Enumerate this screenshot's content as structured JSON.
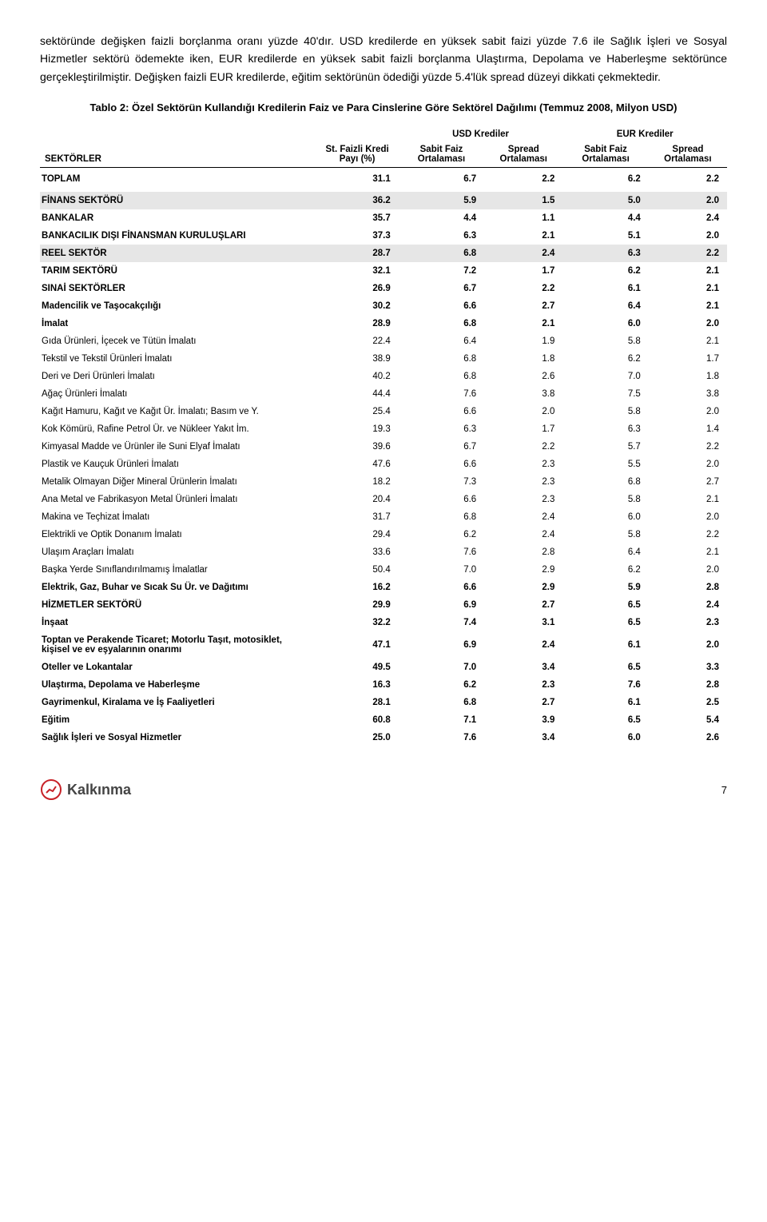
{
  "intro_text": "sektöründe değişken faizli borçlanma oranı yüzde 40'dır. USD kredilerde en yüksek sabit faizi yüzde 7.6 ile Sağlık İşleri ve Sosyal Hizmetler sektörü ödemekte iken, EUR kredilerde en yüksek sabit faizli borçlanma Ulaştırma, Depolama ve Haberleşme sektörünce gerçekleştirilmiştir. Değişken faizli EUR kredilerde, eğitim sektörünün ödediği yüzde 5.4'lük spread düzeyi dikkati çekmektedir.",
  "table_title": "Tablo 2: Özel Sektörün Kullandığı Kredilerin Faiz ve Para Cinslerine Göre Sektörel Dağılımı (Temmuz 2008, Milyon USD)",
  "headers": {
    "sektorler": "SEKTÖRLER",
    "st_faizli": "St. Faizli Kredi Payı (%)",
    "usd_group": "USD Krediler",
    "eur_group": "EUR Krediler",
    "sabit_faiz": "Sabit Faiz Ortalaması",
    "spread": "Spread Ortalaması"
  },
  "rows": [
    {
      "label": "TOPLAM",
      "v": [
        "31.1",
        "6.7",
        "2.2",
        "6.2",
        "2.2"
      ],
      "cls": "toplam"
    },
    {
      "label": "FİNANS SEKTÖRÜ",
      "v": [
        "36.2",
        "5.9",
        "1.5",
        "5.0",
        "2.0"
      ],
      "cls": "section"
    },
    {
      "label": "BANKALAR",
      "v": [
        "35.7",
        "4.4",
        "1.1",
        "4.4",
        "2.4"
      ],
      "cls": "bold"
    },
    {
      "label": "BANKACILIK DIŞI FİNANSMAN KURULUŞLARI",
      "v": [
        "37.3",
        "6.3",
        "2.1",
        "5.1",
        "2.0"
      ],
      "cls": "bold"
    },
    {
      "label": "REEL SEKTÖR",
      "v": [
        "28.7",
        "6.8",
        "2.4",
        "6.3",
        "2.2"
      ],
      "cls": "section"
    },
    {
      "label": "TARIM SEKTÖRÜ",
      "v": [
        "32.1",
        "7.2",
        "1.7",
        "6.2",
        "2.1"
      ],
      "cls": "bold"
    },
    {
      "label": "SINAİ SEKTÖRLER",
      "v": [
        "26.9",
        "6.7",
        "2.2",
        "6.1",
        "2.1"
      ],
      "cls": "bold"
    },
    {
      "label": "Madencilik ve Taşocakçılığı",
      "v": [
        "30.2",
        "6.6",
        "2.7",
        "6.4",
        "2.1"
      ],
      "cls": "bold"
    },
    {
      "label": "İmalat",
      "v": [
        "28.9",
        "6.8",
        "2.1",
        "6.0",
        "2.0"
      ],
      "cls": "bold"
    },
    {
      "label": "Gıda Ürünleri, İçecek ve Tütün İmalatı",
      "v": [
        "22.4",
        "6.4",
        "1.9",
        "5.8",
        "2.1"
      ],
      "cls": ""
    },
    {
      "label": "Tekstil ve Tekstil Ürünleri İmalatı",
      "v": [
        "38.9",
        "6.8",
        "1.8",
        "6.2",
        "1.7"
      ],
      "cls": ""
    },
    {
      "label": "Deri ve Deri Ürünleri İmalatı",
      "v": [
        "40.2",
        "6.8",
        "2.6",
        "7.0",
        "1.8"
      ],
      "cls": ""
    },
    {
      "label": "Ağaç Ürünleri İmalatı",
      "v": [
        "44.4",
        "7.6",
        "3.8",
        "7.5",
        "3.8"
      ],
      "cls": ""
    },
    {
      "label": "Kağıt Hamuru, Kağıt ve Kağıt Ür. İmalatı; Basım ve Y.",
      "v": [
        "25.4",
        "6.6",
        "2.0",
        "5.8",
        "2.0"
      ],
      "cls": ""
    },
    {
      "label": "Kok Kömürü, Rafine Petrol Ür. ve Nükleer Yakıt İm.",
      "v": [
        "19.3",
        "6.3",
        "1.7",
        "6.3",
        "1.4"
      ],
      "cls": ""
    },
    {
      "label": "Kimyasal Madde ve Ürünler ile Suni Elyaf İmalatı",
      "v": [
        "39.6",
        "6.7",
        "2.2",
        "5.7",
        "2.2"
      ],
      "cls": ""
    },
    {
      "label": "Plastik ve Kauçuk Ürünleri İmalatı",
      "v": [
        "47.6",
        "6.6",
        "2.3",
        "5.5",
        "2.0"
      ],
      "cls": ""
    },
    {
      "label": "Metalik Olmayan Diğer Mineral Ürünlerin İmalatı",
      "v": [
        "18.2",
        "7.3",
        "2.3",
        "6.8",
        "2.7"
      ],
      "cls": ""
    },
    {
      "label": "Ana Metal  ve Fabrikasyon Metal Ürünleri İmalatı",
      "v": [
        "20.4",
        "6.6",
        "2.3",
        "5.8",
        "2.1"
      ],
      "cls": ""
    },
    {
      "label": "Makina ve Teçhizat İmalatı",
      "v": [
        "31.7",
        "6.8",
        "2.4",
        "6.0",
        "2.0"
      ],
      "cls": ""
    },
    {
      "label": "Elektrikli ve Optik Donanım İmalatı",
      "v": [
        "29.4",
        "6.2",
        "2.4",
        "5.8",
        "2.2"
      ],
      "cls": ""
    },
    {
      "label": "Ulaşım Araçları İmalatı",
      "v": [
        "33.6",
        "7.6",
        "2.8",
        "6.4",
        "2.1"
      ],
      "cls": ""
    },
    {
      "label": "Başka Yerde Sınıflandırılmamış İmalatlar",
      "v": [
        "50.4",
        "7.0",
        "2.9",
        "6.2",
        "2.0"
      ],
      "cls": ""
    },
    {
      "label": "Elektrik, Gaz, Buhar ve Sıcak Su Ür. ve Dağıtımı",
      "v": [
        "16.2",
        "6.6",
        "2.9",
        "5.9",
        "2.8"
      ],
      "cls": "bold"
    },
    {
      "label": "HİZMETLER SEKTÖRÜ",
      "v": [
        "29.9",
        "6.9",
        "2.7",
        "6.5",
        "2.4"
      ],
      "cls": "bold"
    },
    {
      "label": "İnşaat",
      "v": [
        "32.2",
        "7.4",
        "3.1",
        "6.5",
        "2.3"
      ],
      "cls": "bold"
    },
    {
      "label": "Toptan ve Perakende Ticaret; Motorlu Taşıt, motosiklet, kişisel ve ev eşyalarının onarımı",
      "v": [
        "47.1",
        "6.9",
        "2.4",
        "6.1",
        "2.0"
      ],
      "cls": "bold"
    },
    {
      "label": "Oteller ve Lokantalar",
      "v": [
        "49.5",
        "7.0",
        "3.4",
        "6.5",
        "3.3"
      ],
      "cls": "bold"
    },
    {
      "label": "Ulaştırma,  Depolama ve Haberleşme",
      "v": [
        "16.3",
        "6.2",
        "2.3",
        "7.6",
        "2.8"
      ],
      "cls": "bold"
    },
    {
      "label": "Gayrimenkul, Kiralama ve İş Faaliyetleri",
      "v": [
        "28.1",
        "6.8",
        "2.7",
        "6.1",
        "2.5"
      ],
      "cls": "bold"
    },
    {
      "label": "Eğitim",
      "v": [
        "60.8",
        "7.1",
        "3.9",
        "6.5",
        "5.4"
      ],
      "cls": "bold"
    },
    {
      "label": "Sağlık İşleri ve Sosyal Hizmetler",
      "v": [
        "25.0",
        "7.6",
        "3.4",
        "6.0",
        "2.6"
      ],
      "cls": "bold"
    }
  ],
  "footer": {
    "logo_text": "Kalkınma",
    "page": "7"
  },
  "colors": {
    "section_bg": "#e6e6e6",
    "text": "#000000",
    "bg": "#ffffff",
    "logo_red": "#c72127"
  }
}
